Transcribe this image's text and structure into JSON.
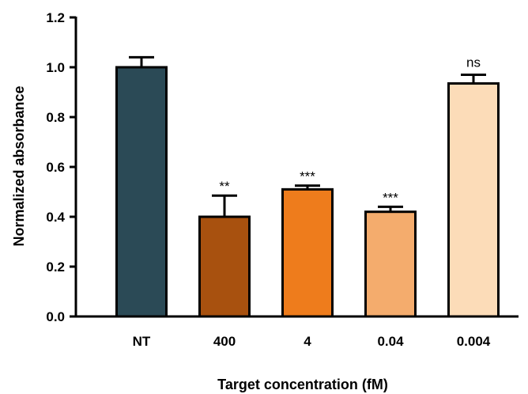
{
  "chart_data": {
    "type": "bar",
    "title": "",
    "xlabel": "Target concentration (fM)",
    "ylabel": "Normalized absorbance",
    "categories": [
      "NT",
      "400",
      "4",
      "0.04",
      "0.004"
    ],
    "values": [
      1.0,
      0.4,
      0.51,
      0.42,
      0.935
    ],
    "errors": [
      0.04,
      0.085,
      0.015,
      0.02,
      0.035
    ],
    "annotations": [
      "",
      "**",
      "***",
      "***",
      "ns"
    ],
    "colors": [
      "#2b4a56",
      "#a8510f",
      "#ee7c1c",
      "#f4ac6d",
      "#fcdcb8"
    ],
    "ylim": [
      0,
      1.2
    ],
    "yticks": [
      "0.0",
      "0.2",
      "0.4",
      "0.6",
      "0.8",
      "1.0",
      "1.2"
    ],
    "grid": false,
    "legend": "none"
  }
}
